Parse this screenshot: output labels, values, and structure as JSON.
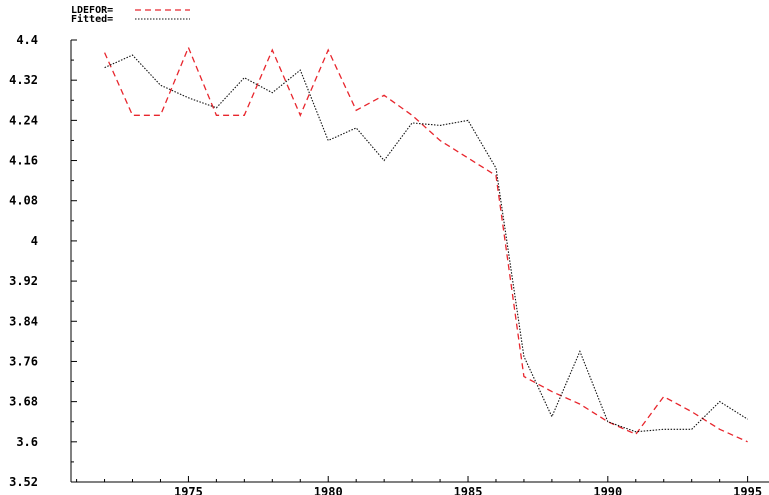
{
  "chart_data": {
    "type": "line",
    "title": "",
    "xlabel": "",
    "ylabel": "",
    "x_ticks": [
      1975,
      1980,
      1985,
      1990,
      1995
    ],
    "x_tick_labels": [
      "1975",
      "1980",
      "1985",
      "1990",
      "1995"
    ],
    "y_ticks": [
      3.52,
      3.6,
      3.68,
      3.76,
      3.84,
      3.92,
      4.0,
      4.08,
      4.16,
      4.24,
      4.32,
      4.4
    ],
    "y_tick_labels": [
      "3.52",
      "3.6",
      "3.68",
      "3.76",
      "3.84",
      "3.92",
      "4",
      "4.08",
      "4.16",
      "4.24",
      "4.32",
      "4.4"
    ],
    "xlim": [
      1970.8,
      1995.3
    ],
    "ylim": [
      3.52,
      4.4
    ],
    "legend_position": "top-left",
    "x": [
      1972,
      1973,
      1974,
      1975,
      1976,
      1977,
      1978,
      1979,
      1980,
      1981,
      1982,
      1983,
      1984,
      1985,
      1986,
      1987,
      1988,
      1989,
      1990,
      1991,
      1992,
      1993,
      1994,
      1995
    ],
    "series": [
      {
        "name": "LDEFOR=",
        "color": "#e8262d",
        "dash": "dashed",
        "values": [
          4.375,
          4.25,
          4.25,
          4.385,
          4.25,
          4.25,
          4.38,
          4.25,
          4.38,
          4.26,
          4.29,
          4.25,
          4.2,
          4.165,
          4.13,
          3.73,
          3.7,
          3.675,
          3.64,
          3.615,
          3.69,
          3.66,
          3.625,
          3.6
        ]
      },
      {
        "name": "Fitted=",
        "color": "#111111",
        "dash": "dotted",
        "values": [
          4.345,
          4.37,
          4.31,
          4.285,
          4.265,
          4.325,
          4.295,
          4.34,
          4.2,
          4.225,
          4.16,
          4.235,
          4.23,
          4.24,
          4.145,
          3.77,
          3.65,
          3.78,
          3.64,
          3.62,
          3.625,
          3.625,
          3.68,
          3.645
        ]
      }
    ]
  }
}
